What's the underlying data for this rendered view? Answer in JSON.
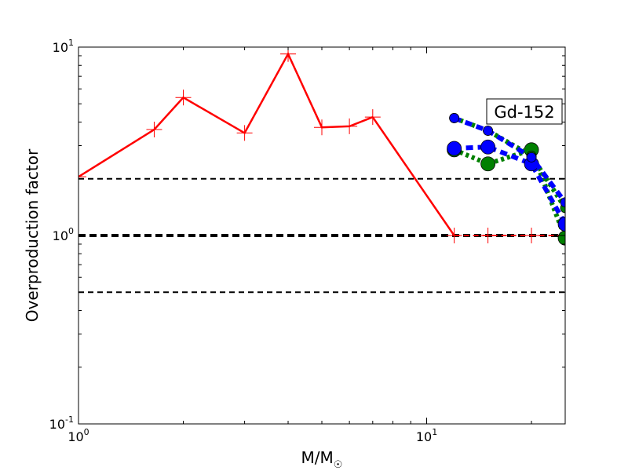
{
  "chart_data": {
    "type": "line",
    "xscale": "log",
    "yscale": "log",
    "xlim": [
      1,
      25
    ],
    "ylim": [
      0.1,
      10
    ],
    "xlabel": "M/M",
    "xlabel_sub": "☉",
    "ylabel": "Overproduction factor",
    "x_ticks": [
      {
        "value": 1,
        "base": "10",
        "exp": "0"
      },
      {
        "value": 10,
        "base": "10",
        "exp": "1"
      }
    ],
    "y_ticks": [
      {
        "value": 0.1,
        "base": "10",
        "exp": "-1"
      },
      {
        "value": 1,
        "base": "10",
        "exp": "0"
      },
      {
        "value": 10,
        "base": "10",
        "exp": "1"
      }
    ],
    "annotation": "Gd-152",
    "reference_lines": [
      {
        "y": 2,
        "style": "dashed",
        "width": 2
      },
      {
        "y": 1,
        "style": "dashed",
        "width": 4
      },
      {
        "y": 0.5,
        "style": "dashed",
        "width": 2
      }
    ],
    "grid": false,
    "series": [
      {
        "color": "#ff0000",
        "line": "solid",
        "marker": "plus",
        "x": [
          1,
          1.65,
          2,
          3,
          4,
          5,
          6,
          7
        ],
        "y": [
          2.05,
          3.65,
          5.4,
          3.5,
          9.2,
          3.75,
          3.8,
          4.25
        ]
      },
      {
        "color": "#ff0000",
        "line": "dashed",
        "marker": "plus",
        "x": [
          12,
          15,
          20,
          25
        ],
        "y": [
          1.0,
          1.0,
          1.0,
          1.0
        ]
      },
      {
        "color": "#ff0000",
        "line": "solid",
        "marker": "none",
        "x": [
          7,
          12
        ],
        "y": [
          4.25,
          1.0
        ]
      },
      {
        "color": "#008000",
        "line": "dotted",
        "marker": "circle",
        "x": [
          12,
          15,
          20,
          25
        ],
        "y": [
          2.85,
          2.4,
          2.85,
          0.97
        ]
      },
      {
        "color": "#008000",
        "line": "dotted",
        "marker": "circle",
        "x": [
          12,
          15,
          20,
          25
        ],
        "y": [
          4.2,
          3.6,
          2.65,
          1.4
        ]
      },
      {
        "color": "#0000ff",
        "line": "dashed",
        "marker": "circle",
        "x": [
          12,
          15,
          20,
          25
        ],
        "y": [
          2.9,
          2.95,
          2.4,
          1.15
        ]
      },
      {
        "color": "#0000ff",
        "line": "dashed",
        "marker": "circle",
        "x": [
          12,
          15,
          20,
          25
        ],
        "y": [
          4.2,
          3.6,
          2.6,
          1.5
        ]
      }
    ]
  }
}
